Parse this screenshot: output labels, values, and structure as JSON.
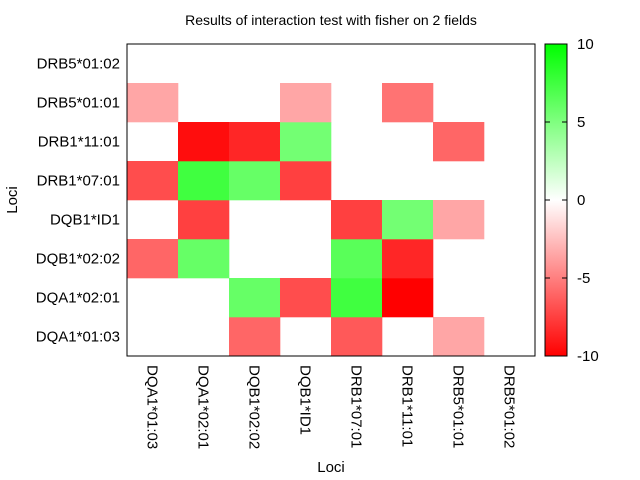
{
  "chart_data": {
    "type": "heatmap",
    "title": "Results of interaction test with fisher on 2 fields",
    "xlabel": "Loci",
    "ylabel": "Loci",
    "x_categories": [
      "DQA1*01:03",
      "DQA1*02:01",
      "DQB1*02:02",
      "DQB1*ID1",
      "DRB1*07:01",
      "DRB1*11:01",
      "DRB5*01:01",
      "DRB5*01:02"
    ],
    "y_categories": [
      "DQA1*01:03",
      "DQA1*02:01",
      "DQB1*02:02",
      "DQB1*ID1",
      "DRB1*07:01",
      "DRB1*11:01",
      "DRB5*01:01",
      "DRB5*01:02"
    ],
    "colorbar": {
      "range": [
        -10,
        10
      ],
      "ticks": [
        10,
        5,
        0,
        -5,
        -10
      ],
      "low_color": "#ff0000",
      "mid_color": "#ffffff",
      "high_color": "#00ff00"
    },
    "values": [
      [
        0,
        0,
        -6,
        0,
        -6.5,
        0,
        -3.5,
        0
      ],
      [
        0,
        0,
        6,
        -7,
        7.5,
        -10,
        0,
        0
      ],
      [
        -6,
        6,
        0,
        0,
        6.5,
        -8.5,
        0,
        0
      ],
      [
        0,
        -7.5,
        0,
        0,
        -7.5,
        5.5,
        -3.5,
        0
      ],
      [
        -7,
        7.5,
        6,
        -7.5,
        0,
        0,
        0,
        0
      ],
      [
        0,
        -9.5,
        -8.5,
        5.5,
        0,
        0,
        -6,
        0
      ],
      [
        -3.5,
        0,
        0,
        -3.5,
        0,
        -5.5,
        0,
        0
      ],
      [
        0,
        0,
        0,
        0,
        0,
        0,
        0,
        0
      ]
    ]
  }
}
